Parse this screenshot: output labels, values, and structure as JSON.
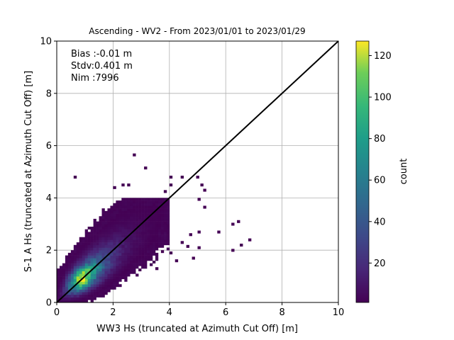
{
  "chart_data": {
    "type": "heatmap",
    "title": "Ascending - WV2 - From 2023/01/01 to 2023/01/29",
    "xlabel": "WW3 Hs (truncated at Azimuth Cut Off) [m]",
    "ylabel": "S-1 A Hs (truncated at Azimuth Cut Off) [m]",
    "xlim": [
      0,
      10
    ],
    "ylim": [
      0,
      10
    ],
    "xticks": [
      "0",
      "2",
      "4",
      "6",
      "8",
      "10"
    ],
    "yticks": [
      "0",
      "2",
      "4",
      "6",
      "8",
      "10"
    ],
    "grid": true,
    "annotations": [
      "Bias :-0.01 m",
      "Stdv:0.401 m",
      "Nim :7996"
    ],
    "reference_line": {
      "type": "y=x",
      "color": "#000000",
      "from": [
        0,
        0
      ],
      "to": [
        10,
        10
      ]
    },
    "colorbar": {
      "label": "count",
      "range": [
        1,
        127
      ],
      "ticks": [
        "20",
        "40",
        "60",
        "80",
        "100",
        "120"
      ],
      "colormap": "viridis"
    },
    "bin_size": 0.1,
    "approx_density": {
      "peak_at": [
        0.9,
        0.85
      ],
      "peak_count": 127,
      "description_points": [
        {
          "x": 0.9,
          "y": 0.85,
          "count": 127
        },
        {
          "x": 0.7,
          "y": 0.7,
          "count": 95
        },
        {
          "x": 1.2,
          "y": 1.1,
          "count": 70
        },
        {
          "x": 1.7,
          "y": 1.6,
          "count": 25
        },
        {
          "x": 2.3,
          "y": 2.1,
          "count": 6
        },
        {
          "x": 3.0,
          "y": 2.6,
          "count": 2
        }
      ]
    },
    "outliers": [
      {
        "x": 0.6,
        "y": 4.75
      },
      {
        "x": 2.7,
        "y": 5.6
      },
      {
        "x": 3.1,
        "y": 5.1
      },
      {
        "x": 4.0,
        "y": 4.45
      },
      {
        "x": 4.0,
        "y": 4.75
      },
      {
        "x": 3.8,
        "y": 4.2
      },
      {
        "x": 4.4,
        "y": 4.75
      },
      {
        "x": 4.95,
        "y": 4.75
      },
      {
        "x": 5.1,
        "y": 4.45
      },
      {
        "x": 5.2,
        "y": 4.25
      },
      {
        "x": 5.0,
        "y": 3.9
      },
      {
        "x": 5.2,
        "y": 3.6
      },
      {
        "x": 6.2,
        "y": 2.95
      },
      {
        "x": 6.4,
        "y": 3.05
      },
      {
        "x": 5.7,
        "y": 2.65
      },
      {
        "x": 6.8,
        "y": 2.35
      },
      {
        "x": 6.5,
        "y": 2.15
      },
      {
        "x": 6.2,
        "y": 1.95
      },
      {
        "x": 4.8,
        "y": 1.65
      },
      {
        "x": 4.2,
        "y": 1.55
      },
      {
        "x": 3.5,
        "y": 1.25
      },
      {
        "x": 2.0,
        "y": 4.35
      },
      {
        "x": 2.3,
        "y": 4.45
      },
      {
        "x": 2.5,
        "y": 4.45
      },
      {
        "x": 4.7,
        "y": 2.55
      },
      {
        "x": 5.0,
        "y": 2.65
      },
      {
        "x": 4.4,
        "y": 2.25
      },
      {
        "x": 4.6,
        "y": 2.1
      },
      {
        "x": 4.0,
        "y": 1.85
      },
      {
        "x": 5.0,
        "y": 2.05
      }
    ]
  }
}
